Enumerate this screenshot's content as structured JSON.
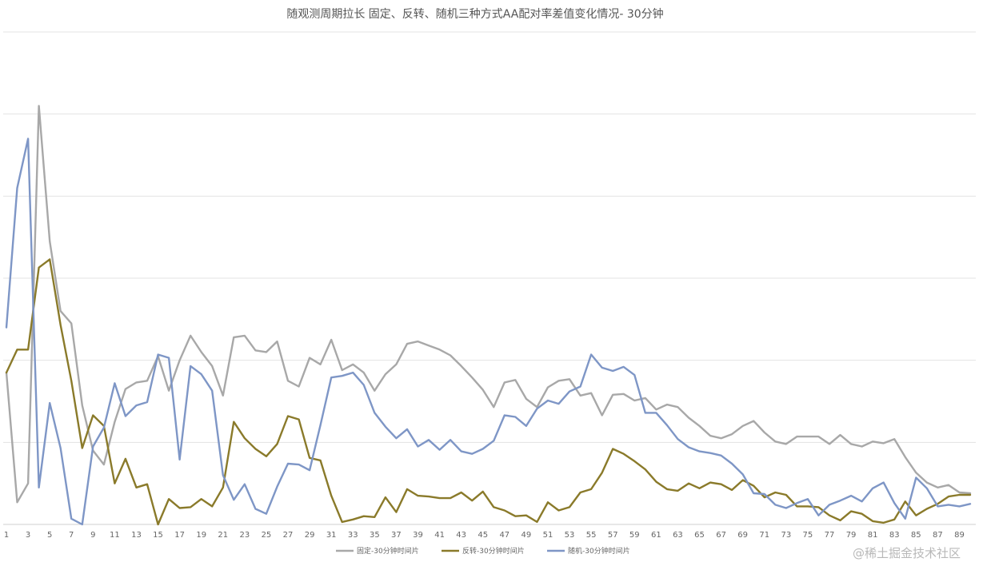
{
  "chart_data": {
    "type": "line",
    "title": "随观测周期拉长  固定、反转、随机三种方式AA配对率差值变化情况- 30分钟",
    "xlabel": "",
    "ylabel": "",
    "ylim": [
      0,
      6
    ],
    "grid": true,
    "legend_position": "bottom",
    "x_tick_labels": [
      "1",
      "3",
      "5",
      "7",
      "9",
      "11",
      "13",
      "15",
      "17",
      "19",
      "21",
      "23",
      "25",
      "27",
      "29",
      "31",
      "33",
      "35",
      "37",
      "39",
      "41",
      "43",
      "45",
      "47",
      "49",
      "51",
      "53",
      "55",
      "57",
      "59",
      "61",
      "63",
      "65",
      "67",
      "69",
      "71",
      "73",
      "75",
      "77",
      "79",
      "81",
      "83",
      "85",
      "87",
      "89"
    ],
    "x": [
      1,
      2,
      3,
      4,
      5,
      6,
      7,
      8,
      9,
      10,
      11,
      12,
      13,
      14,
      15,
      16,
      17,
      18,
      19,
      20,
      21,
      22,
      23,
      24,
      25,
      26,
      27,
      28,
      29,
      30,
      31,
      32,
      33,
      34,
      35,
      36,
      37,
      38,
      39,
      40,
      41,
      42,
      43,
      44,
      45,
      46,
      47,
      48,
      49,
      50,
      51,
      52,
      53,
      54,
      55,
      56,
      57,
      58,
      59,
      60,
      61,
      62,
      63,
      64,
      65,
      66,
      67,
      68,
      69,
      70,
      71,
      72,
      73,
      74,
      75,
      76,
      77,
      78,
      79,
      80,
      81,
      82,
      83,
      84,
      85,
      86,
      87,
      88,
      89,
      90
    ],
    "series": [
      {
        "name": "固定-30分钟时间片",
        "color": "#a8a8a8",
        "values": [
          1.85,
          0.27,
          0.5,
          5.1,
          3.45,
          2.6,
          2.45,
          1.45,
          0.9,
          0.73,
          1.25,
          1.65,
          1.73,
          1.75,
          2.05,
          1.63,
          2.0,
          2.3,
          2.1,
          1.93,
          1.57,
          2.28,
          2.3,
          2.12,
          2.1,
          2.23,
          1.75,
          1.68,
          2.03,
          1.95,
          2.25,
          1.88,
          1.95,
          1.85,
          1.63,
          1.83,
          1.95,
          2.2,
          2.23,
          2.18,
          2.13,
          2.06,
          1.93,
          1.79,
          1.64,
          1.43,
          1.73,
          1.76,
          1.53,
          1.43,
          1.67,
          1.75,
          1.77,
          1.57,
          1.6,
          1.33,
          1.58,
          1.59,
          1.51,
          1.54,
          1.4,
          1.46,
          1.43,
          1.3,
          1.2,
          1.08,
          1.05,
          1.1,
          1.2,
          1.26,
          1.12,
          1.01,
          0.98,
          1.07,
          1.07,
          1.07,
          0.98,
          1.09,
          0.98,
          0.95,
          1.01,
          0.99,
          1.04,
          0.82,
          0.63,
          0.51,
          0.45,
          0.48,
          0.39,
          0.38
        ]
      },
      {
        "name": "反转-30分钟时间片",
        "color": "#8a7a2a",
        "values": [
          1.85,
          2.13,
          2.13,
          3.13,
          3.23,
          2.43,
          1.75,
          0.93,
          1.33,
          1.2,
          0.5,
          0.8,
          0.45,
          0.49,
          0.0,
          0.31,
          0.2,
          0.21,
          0.31,
          0.22,
          0.45,
          1.25,
          1.05,
          0.92,
          0.83,
          0.98,
          1.32,
          1.28,
          0.81,
          0.78,
          0.35,
          0.03,
          0.06,
          0.1,
          0.09,
          0.33,
          0.15,
          0.43,
          0.35,
          0.34,
          0.32,
          0.32,
          0.39,
          0.29,
          0.4,
          0.21,
          0.17,
          0.1,
          0.11,
          0.03,
          0.27,
          0.17,
          0.21,
          0.39,
          0.43,
          0.63,
          0.92,
          0.86,
          0.77,
          0.67,
          0.52,
          0.43,
          0.41,
          0.5,
          0.44,
          0.51,
          0.49,
          0.42,
          0.54,
          0.47,
          0.33,
          0.39,
          0.36,
          0.22,
          0.22,
          0.21,
          0.11,
          0.05,
          0.16,
          0.13,
          0.04,
          0.02,
          0.06,
          0.28,
          0.11,
          0.19,
          0.25,
          0.34,
          0.36,
          0.36
        ]
      },
      {
        "name": "随机-30分钟时间片",
        "color": "#7e96c6",
        "values": [
          2.4,
          4.1,
          4.7,
          0.45,
          1.48,
          0.93,
          0.07,
          0.0,
          0.95,
          1.18,
          1.72,
          1.32,
          1.45,
          1.49,
          2.07,
          2.03,
          0.79,
          1.93,
          1.83,
          1.63,
          0.6,
          0.3,
          0.49,
          0.19,
          0.13,
          0.46,
          0.74,
          0.73,
          0.66,
          1.21,
          1.79,
          1.81,
          1.85,
          1.7,
          1.36,
          1.19,
          1.05,
          1.16,
          0.95,
          1.03,
          0.91,
          1.03,
          0.89,
          0.86,
          0.92,
          1.02,
          1.33,
          1.31,
          1.2,
          1.41,
          1.51,
          1.47,
          1.62,
          1.68,
          2.07,
          1.91,
          1.87,
          1.92,
          1.82,
          1.36,
          1.36,
          1.21,
          1.04,
          0.94,
          0.89,
          0.87,
          0.84,
          0.74,
          0.61,
          0.38,
          0.37,
          0.24,
          0.2,
          0.26,
          0.31,
          0.11,
          0.24,
          0.29,
          0.35,
          0.28,
          0.44,
          0.51,
          0.26,
          0.07,
          0.57,
          0.44,
          0.22,
          0.24,
          0.22,
          0.25
        ]
      }
    ]
  },
  "watermark": "@稀土掘金技术社区"
}
